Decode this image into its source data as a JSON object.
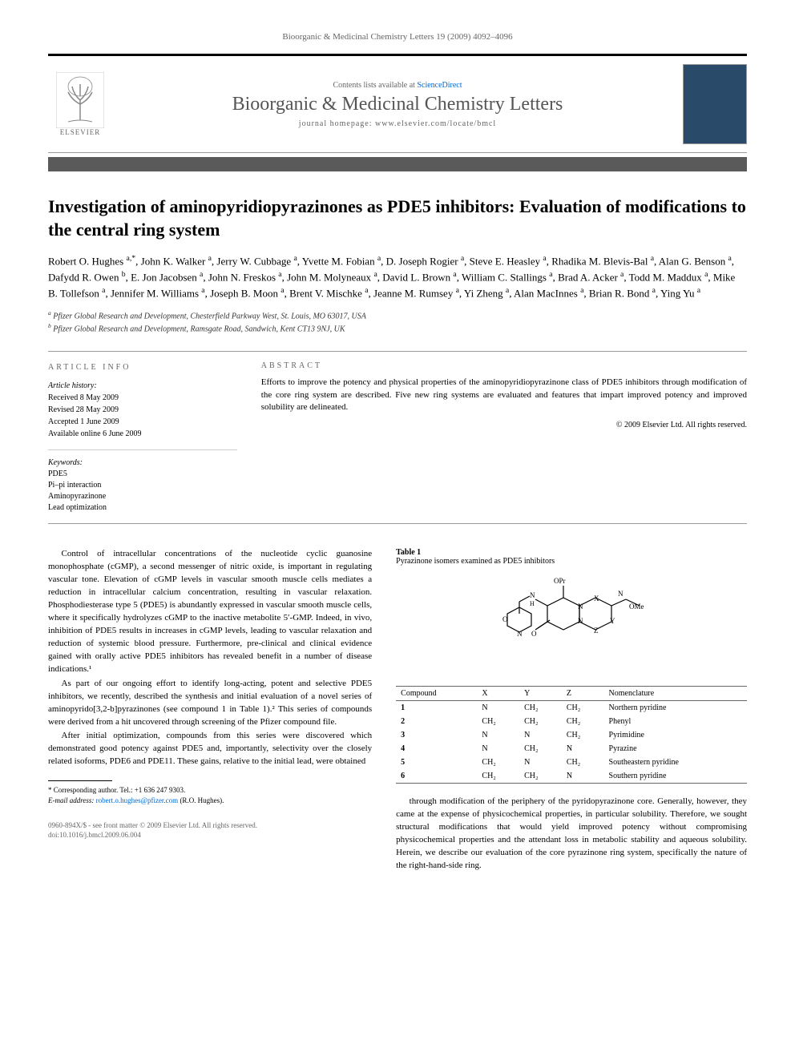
{
  "header": {
    "citation": "Bioorganic & Medicinal Chemistry Letters 19 (2009) 4092–4096",
    "contents_line_prefix": "Contents lists available at ",
    "contents_line_link": "ScienceDirect",
    "journal_name": "Bioorganic & Medicinal Chemistry Letters",
    "homepage_prefix": "journal homepage: ",
    "homepage_url": "www.elsevier.com/locate/bmcl",
    "publisher": "ELSEVIER"
  },
  "title": "Investigation of aminopyridiopyrazinones as PDE5 inhibitors: Evaluation of modifications to the central ring system",
  "authors_html": "Robert O. Hughes <span class='sup'>a,*</span>, John K. Walker <span class='sup'>a</span>, Jerry W. Cubbage <span class='sup'>a</span>, Yvette M. Fobian <span class='sup'>a</span>, D. Joseph Rogier <span class='sup'>a</span>, Steve E. Heasley <span class='sup'>a</span>, Rhadika M. Blevis-Bal <span class='sup'>a</span>, Alan G. Benson <span class='sup'>a</span>, Dafydd R. Owen <span class='sup'>b</span>, E. Jon Jacobsen <span class='sup'>a</span>, John N. Freskos <span class='sup'>a</span>, John M. Molyneaux <span class='sup'>a</span>, David L. Brown <span class='sup'>a</span>, William C. Stallings <span class='sup'>a</span>, Brad A. Acker <span class='sup'>a</span>, Todd M. Maddux <span class='sup'>a</span>, Mike B. Tollefson <span class='sup'>a</span>, Jennifer M. Williams <span class='sup'>a</span>, Joseph B. Moon <span class='sup'>a</span>, Brent V. Mischke <span class='sup'>a</span>, Jeanne M. Rumsey <span class='sup'>a</span>, Yi Zheng <span class='sup'>a</span>, Alan MacInnes <span class='sup'>a</span>, Brian R. Bond <span class='sup'>a</span>, Ying Yu <span class='sup'>a</span>",
  "affiliations": [
    "Pfizer Global Research and Development, Chesterfield Parkway West, St. Louis, MO 63017, USA",
    "Pfizer Global Research and Development, Ramsgate Road, Sandwich, Kent CT13 9NJ, UK"
  ],
  "affiliation_markers": [
    "a",
    "b"
  ],
  "article_info": {
    "heading": "ARTICLE INFO",
    "history_label": "Article history:",
    "history": [
      "Received 8 May 2009",
      "Revised 28 May 2009",
      "Accepted 1 June 2009",
      "Available online 6 June 2009"
    ],
    "keywords_label": "Keywords:",
    "keywords": [
      "PDE5",
      "Pi–pi interaction",
      "Aminopyrazinone",
      "Lead optimization"
    ]
  },
  "abstract": {
    "heading": "ABSTRACT",
    "text": "Efforts to improve the potency and physical properties of the aminopyridiopyrazinone class of PDE5 inhibitors through modification of the core ring system are described. Five new ring systems are evaluated and features that impart improved potency and improved solubility are delineated.",
    "copyright": "© 2009 Elsevier Ltd. All rights reserved."
  },
  "body": {
    "p1": "Control of intracellular concentrations of the nucleotide cyclic guanosine monophosphate (cGMP), a second messenger of nitric oxide, is important in regulating vascular tone. Elevation of cGMP levels in vascular smooth muscle cells mediates a reduction in intracellular calcium concentration, resulting in vascular relaxation. Phosphodiesterase type 5 (PDE5) is abundantly expressed in vascular smooth muscle cells, where it specifically hydrolyzes cGMP to the inactive metabolite 5′-GMP. Indeed, in vivo, inhibition of PDE5 results in increases in cGMP levels, leading to vascular relaxation and reduction of systemic blood pressure. Furthermore, pre-clinical and clinical evidence gained with orally active PDE5 inhibitors has revealed benefit in a number of disease indications.¹",
    "p2": "As part of our ongoing effort to identify long-acting, potent and selective PDE5 inhibitors, we recently, described the synthesis and initial evaluation of a novel series of aminopyrido[3,2-b]pyrazinones (see compound 1 in Table 1).² This series of compounds were derived from a hit uncovered through screening of the Pfizer compound file.",
    "p3": "After initial optimization, compounds from this series were discovered which demonstrated good potency against PDE5 and, importantly, selectivity over the closely related isoforms, PDE6 and PDE11. These gains, relative to the initial lead, were obtained",
    "p4": "through modification of the periphery of the pyridopyrazinone core. Generally, however, they came at the expense of physicochemical properties, in particular solubility. Therefore, we sought structural modifications that would yield improved potency without compromising physicochemical properties and the attendant loss in metabolic stability and aqueous solubility. Herein, we describe our evaluation of the core pyrazinone ring system, specifically the nature of the right-hand-side ring."
  },
  "table1": {
    "label": "Table 1",
    "caption": "Pyrazinone isomers examined as PDE5 inhibitors",
    "columns": [
      "Compound",
      "X",
      "Y",
      "Z",
      "Nomenclature"
    ],
    "rows": [
      [
        "1",
        "N",
        "CH₂",
        "CH₂",
        "Northern pyridine"
      ],
      [
        "2",
        "CH₂",
        "CH₂",
        "CH₂",
        "Phenyl"
      ],
      [
        "3",
        "N",
        "N",
        "CH₂",
        "Pyrimidine"
      ],
      [
        "4",
        "N",
        "CH₂",
        "N",
        "Pyrazine"
      ],
      [
        "5",
        "CH₂",
        "N",
        "CH₂",
        "Southeastern pyridine"
      ],
      [
        "6",
        "CH₂",
        "CH₂",
        "N",
        "Southern pyridine"
      ]
    ],
    "column_widths": [
      "18%",
      "14%",
      "14%",
      "14%",
      "40%"
    ]
  },
  "footnotes": {
    "corresponding": "* Corresponding author. Tel.: +1 636 247 9303.",
    "email_label": "E-mail address:",
    "email": "robert.o.hughes@pfizer.com",
    "email_suffix": "(R.O. Hughes)."
  },
  "footer": {
    "line1": "0960-894X/$ - see front matter © 2009 Elsevier Ltd. All rights reserved.",
    "line2": "doi:10.1016/j.bmcl.2009.06.004"
  },
  "styles": {
    "page_bg": "#ffffff",
    "bar_color": "#5a5a5a",
    "link_color": "#0066cc",
    "cover_thumb_color": "#2a4a6a"
  }
}
